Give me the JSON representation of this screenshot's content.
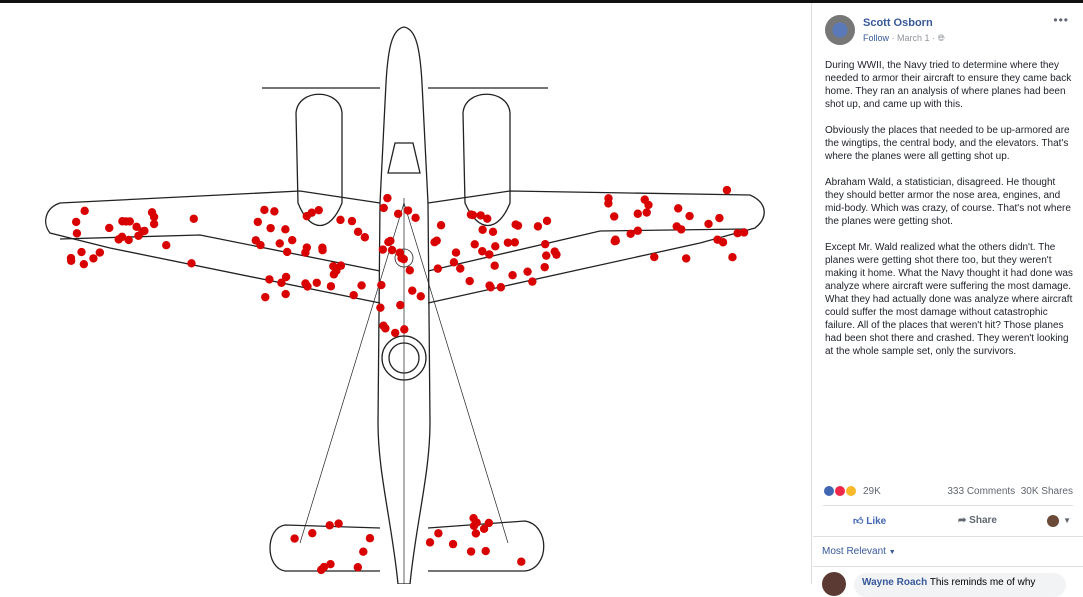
{
  "post": {
    "author": "Scott Osborn",
    "follow_label": "Follow",
    "date": "March 1",
    "more_icon": "ellipsis-icon",
    "privacy_icon": "globe-icon",
    "paragraphs": [
      "During WWII, the Navy tried to determine where they needed to armor their aircraft to ensure they came back home. They ran an analysis of where planes had been shot up, and came up with this.",
      "Obviously the places that needed to be up-armored are the wingtips, the central body, and the elevators. That's where the planes were all getting shot up.",
      "Abraham Wald, a statistician, disagreed. He thought they should better armor the nose area, engines, and mid-body. Which was crazy, of course. That's not where the planes were getting shot.",
      "Except Mr. Wald realized what the others didn't. The planes were getting shot there too, but they weren't making it home. What the Navy thought it had done was analyze where aircraft were suffering the most damage. What they had actually done was analyze where aircraft could suffer the most damage without catastrophic failure. All of the places that weren't hit? Those planes had been shot there and crashed. They weren't looking at the whole sample set, only the survivors."
    ]
  },
  "stats": {
    "reactions": "29K",
    "comments": "333 Comments",
    "shares": "30K Shares"
  },
  "actions": {
    "like": "Like",
    "share": "Share"
  },
  "comments": {
    "sort_label": "Most Relevant",
    "first": {
      "author": "Wayne Roach",
      "text": "This reminds me of why"
    }
  },
  "colors": {
    "brand": "#4267b2",
    "link": "#365899",
    "hit": "#d90000"
  }
}
